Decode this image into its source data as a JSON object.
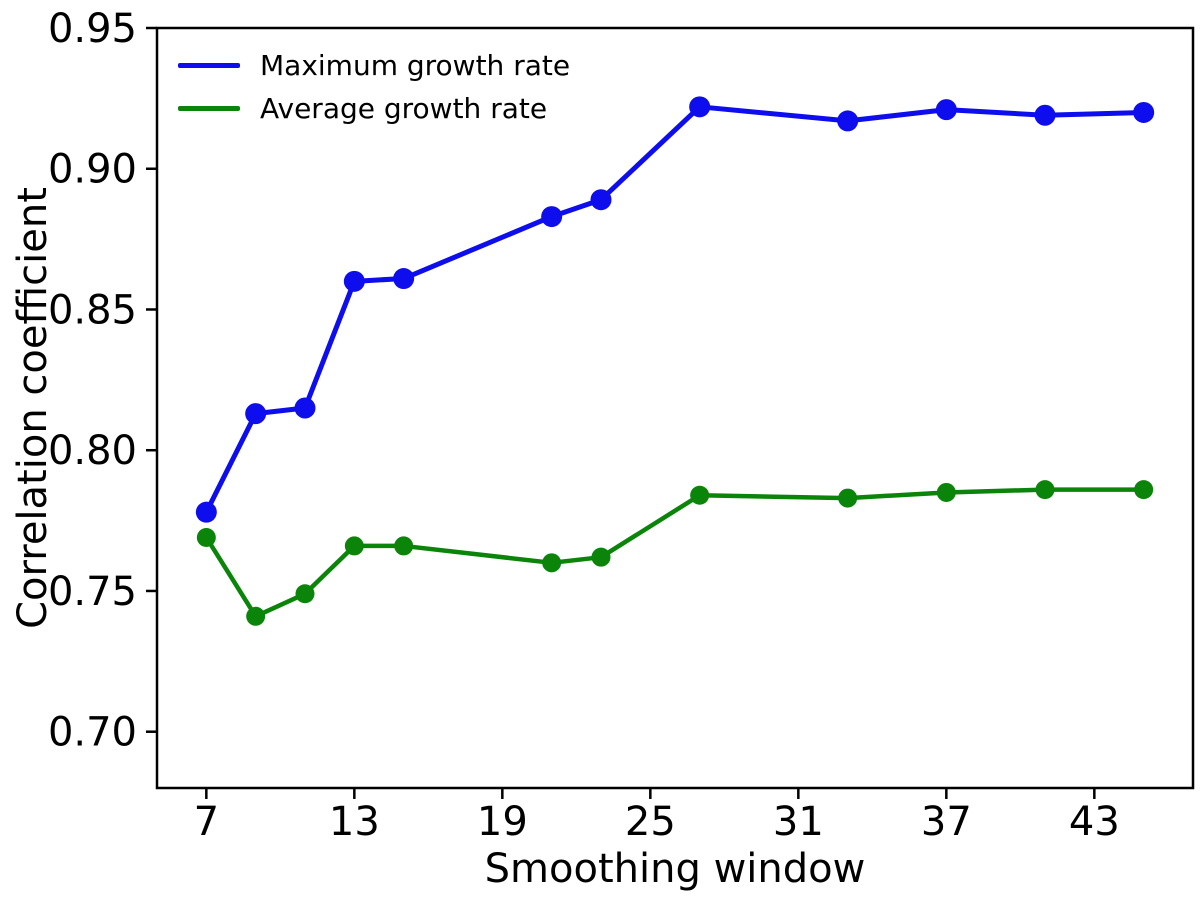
{
  "chart_data": {
    "type": "line",
    "title": "",
    "xlabel": "Smoothing window",
    "ylabel": "Correlation coefficient",
    "x": [
      7,
      9,
      11,
      13,
      15,
      21,
      23,
      27,
      33,
      37,
      41,
      45
    ],
    "series": [
      {
        "name": "Maximum growth rate",
        "color": "#0d0dee",
        "line_width": 5,
        "marker": "circle",
        "marker_radius": 10.5,
        "values": [
          0.778,
          0.813,
          0.815,
          0.86,
          0.861,
          0.883,
          0.889,
          0.922,
          0.917,
          0.921,
          0.919,
          0.92
        ]
      },
      {
        "name": "Average growth rate",
        "color": "#0a850a",
        "line_width": 4.5,
        "marker": "circle",
        "marker_radius": 9.5,
        "values": [
          0.769,
          0.741,
          0.749,
          0.766,
          0.766,
          0.76,
          0.762,
          0.784,
          0.783,
          0.785,
          0.786,
          0.786
        ]
      }
    ],
    "xlim": [
      5,
      47
    ],
    "ylim": [
      0.68,
      0.95
    ],
    "xticks": {
      "values": [
        7,
        13,
        19,
        25,
        31,
        37,
        43
      ],
      "labels": [
        "7",
        "13",
        "19",
        "25",
        "31",
        "37",
        "43"
      ]
    },
    "yticks": {
      "values": [
        0.95,
        0.9,
        0.85,
        0.8,
        0.75,
        0.7
      ],
      "labels": [
        "0.95",
        "0.90",
        "0.85",
        "0.80",
        "0.75",
        "0.70"
      ]
    },
    "grid": false,
    "legend": {
      "position": "upper left",
      "frame": false
    },
    "axis_color": "#000000",
    "background_color": "#ffffff"
  }
}
